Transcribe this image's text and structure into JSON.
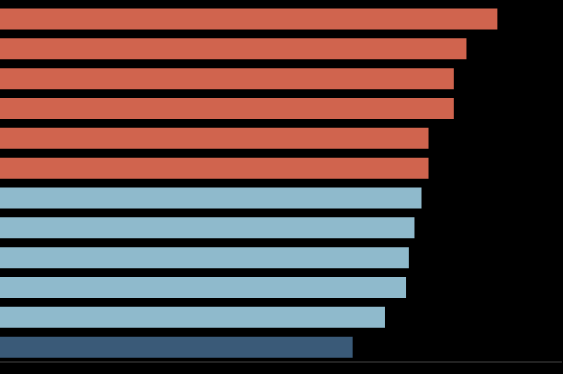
{
  "chart_data": {
    "type": "bar",
    "orientation": "horizontal",
    "categories": [
      null,
      null,
      null,
      null,
      null,
      null,
      null,
      null,
      null,
      null,
      null,
      null
    ],
    "values": [
      3.54,
      3.32,
      3.23,
      3.23,
      3.05,
      3.05,
      3.0,
      2.95,
      2.91,
      2.89,
      2.74,
      2.51
    ],
    "colors": [
      "#d0644e",
      "#d0644e",
      "#d0644e",
      "#d0644e",
      "#d0644e",
      "#d0644e",
      "#8fbacc",
      "#8fbacc",
      "#8fbacc",
      "#8fbacc",
      "#8fbacc",
      "#3a5a78"
    ],
    "xlim": [
      0,
      4
    ],
    "xticks": [
      0,
      1,
      2,
      3,
      4
    ],
    "tick_labels": false,
    "grid": false
  }
}
